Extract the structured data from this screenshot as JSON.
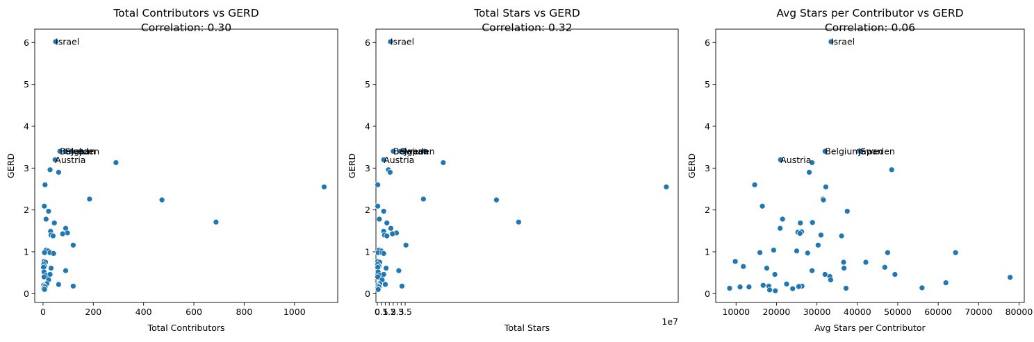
{
  "chart_data": [
    {
      "type": "scatter",
      "title": "Total Contributors vs GERD",
      "subtitle": "Correlation: 0.30",
      "xlabel": "Total Contributors",
      "ylabel": "GERD",
      "xlim": [
        -33,
        1172
      ],
      "ylim": [
        -0.21,
        6.32
      ],
      "xticks": [
        0,
        200,
        400,
        600,
        800,
        1000
      ],
      "yticks": [
        0,
        1,
        2,
        3,
        4,
        5,
        6
      ],
      "offset_text": "",
      "color": "#1f77b4",
      "points": [
        [
          50,
          6.02
        ],
        [
          67,
          3.4
        ],
        [
          88,
          3.4
        ],
        [
          112,
          3.4
        ],
        [
          150,
          3.4
        ],
        [
          48,
          3.2
        ],
        [
          290,
          3.13
        ],
        [
          28,
          2.96
        ],
        [
          62,
          2.9
        ],
        [
          8,
          2.6
        ],
        [
          1118,
          2.55
        ],
        [
          185,
          2.26
        ],
        [
          473,
          2.24
        ],
        [
          5,
          2.09
        ],
        [
          22,
          1.97
        ],
        [
          12,
          1.78
        ],
        [
          45,
          1.69
        ],
        [
          688,
          1.71
        ],
        [
          90,
          1.56
        ],
        [
          30,
          1.49
        ],
        [
          97,
          1.45
        ],
        [
          78,
          1.43
        ],
        [
          32,
          1.4
        ],
        [
          40,
          1.38
        ],
        [
          120,
          1.16
        ],
        [
          12,
          1.04
        ],
        [
          20,
          1.02
        ],
        [
          6,
          0.98
        ],
        [
          28,
          0.98
        ],
        [
          42,
          0.96
        ],
        [
          4,
          0.77
        ],
        [
          10,
          0.75
        ],
        [
          3,
          0.7
        ],
        [
          6,
          0.65
        ],
        [
          2,
          0.63
        ],
        [
          32,
          0.61
        ],
        [
          4,
          0.52
        ],
        [
          90,
          0.55
        ],
        [
          12,
          0.44
        ],
        [
          28,
          0.46
        ],
        [
          4,
          0.4
        ],
        [
          22,
          0.33
        ],
        [
          15,
          0.24
        ],
        [
          62,
          0.22
        ],
        [
          2,
          0.2
        ],
        [
          5,
          0.18
        ],
        [
          8,
          0.16
        ],
        [
          120,
          0.18
        ],
        [
          3,
          0.12
        ],
        [
          6,
          0.1
        ]
      ],
      "annotations": [
        {
          "text": "Israel",
          "x": 50,
          "y": 6.02
        },
        {
          "text": "Belgium",
          "x": 67,
          "y": 3.4
        },
        {
          "text": "Sweden",
          "x": 88,
          "y": 3.4
        },
        {
          "text": "Japan",
          "x": 112,
          "y": 3.4
        },
        {
          "text": "Austria",
          "x": 48,
          "y": 3.2
        }
      ]
    },
    {
      "type": "scatter",
      "title": "Total Stars vs GERD",
      "subtitle": "Correlation: 0.32",
      "xlabel": "Total Stars",
      "ylabel": "GERD",
      "xlim": [
        -0.18,
        37.9
      ],
      "ylim": [
        -0.21,
        6.32
      ],
      "xticks": [
        0.0,
        0.5,
        1.0,
        1.5,
        2.0,
        2.5,
        3.0,
        3.5
      ],
      "yticks": [
        0,
        1,
        2,
        3,
        4,
        5,
        6
      ],
      "offset_text": "1e7",
      "color": "#1f77b4",
      "points": [
        [
          1.65,
          6.02
        ],
        [
          2.0,
          3.4
        ],
        [
          2.9,
          3.4
        ],
        [
          3.4,
          3.4
        ],
        [
          6.0,
          3.4
        ],
        [
          0.8,
          3.2
        ],
        [
          8.3,
          3.13
        ],
        [
          1.4,
          2.96
        ],
        [
          1.6,
          2.9
        ],
        [
          0.05,
          2.6
        ],
        [
          36.4,
          2.55
        ],
        [
          5.8,
          2.26
        ],
        [
          15.0,
          2.24
        ],
        [
          0.05,
          2.09
        ],
        [
          0.8,
          1.97
        ],
        [
          0.25,
          1.78
        ],
        [
          1.2,
          1.69
        ],
        [
          17.8,
          1.71
        ],
        [
          1.7,
          1.56
        ],
        [
          0.8,
          1.49
        ],
        [
          2.4,
          1.45
        ],
        [
          1.9,
          1.43
        ],
        [
          0.9,
          1.4
        ],
        [
          1.2,
          1.38
        ],
        [
          3.6,
          1.16
        ],
        [
          0.2,
          1.04
        ],
        [
          0.5,
          1.02
        ],
        [
          0.1,
          0.98
        ],
        [
          0.6,
          0.98
        ],
        [
          0.8,
          0.96
        ],
        [
          0.05,
          0.77
        ],
        [
          0.3,
          0.75
        ],
        [
          0.05,
          0.7
        ],
        [
          0.2,
          0.65
        ],
        [
          0.05,
          0.63
        ],
        [
          1.1,
          0.61
        ],
        [
          0.1,
          0.52
        ],
        [
          2.7,
          0.55
        ],
        [
          0.3,
          0.44
        ],
        [
          0.8,
          0.46
        ],
        [
          0.05,
          0.4
        ],
        [
          0.6,
          0.33
        ],
        [
          0.3,
          0.24
        ],
        [
          1.0,
          0.22
        ],
        [
          0.05,
          0.2
        ],
        [
          0.1,
          0.18
        ],
        [
          0.2,
          0.16
        ],
        [
          3.1,
          0.18
        ],
        [
          0.05,
          0.12
        ],
        [
          0.1,
          0.1
        ]
      ],
      "annotations": [
        {
          "text": "Israel",
          "x": 1.65,
          "y": 6.02
        },
        {
          "text": "Belgium",
          "x": 2.0,
          "y": 3.4
        },
        {
          "text": "Sweden",
          "x": 2.9,
          "y": 3.4
        },
        {
          "text": "Japan",
          "x": 3.4,
          "y": 3.4
        },
        {
          "text": "Austria",
          "x": 0.8,
          "y": 3.2
        }
      ]
    },
    {
      "type": "scatter",
      "title": "Avg Stars per Contributor vs GERD",
      "subtitle": "Correlation: 0.06",
      "xlabel": "Avg Stars per Contributor",
      "ylabel": "GERD",
      "xlim": [
        4970,
        81295
      ],
      "ylim": [
        -0.21,
        6.32
      ],
      "xticks": [
        10000,
        20000,
        30000,
        40000,
        50000,
        60000,
        70000,
        80000
      ],
      "yticks": [
        0,
        1,
        2,
        3,
        4,
        5,
        6
      ],
      "offset_text": "",
      "color": "#1f77b4",
      "points": [
        [
          33500,
          6.02
        ],
        [
          32000,
          3.4
        ],
        [
          40300,
          3.4
        ],
        [
          40800,
          3.4
        ],
        [
          21000,
          3.2
        ],
        [
          28800,
          3.13
        ],
        [
          48500,
          2.96
        ],
        [
          28100,
          2.9
        ],
        [
          14600,
          2.6
        ],
        [
          32200,
          2.55
        ],
        [
          31500,
          2.26
        ],
        [
          31600,
          2.24
        ],
        [
          16500,
          2.09
        ],
        [
          37500,
          1.97
        ],
        [
          21500,
          1.78
        ],
        [
          25900,
          1.69
        ],
        [
          28900,
          1.7
        ],
        [
          20900,
          1.56
        ],
        [
          25300,
          1.47
        ],
        [
          26200,
          1.48
        ],
        [
          25800,
          1.44
        ],
        [
          31000,
          1.4
        ],
        [
          36100,
          1.38
        ],
        [
          30300,
          1.16
        ],
        [
          19300,
          1.04
        ],
        [
          25000,
          1.02
        ],
        [
          15900,
          0.98
        ],
        [
          27700,
          0.97
        ],
        [
          47500,
          0.98
        ],
        [
          64300,
          0.98
        ],
        [
          9800,
          0.77
        ],
        [
          36600,
          0.75
        ],
        [
          42100,
          0.75
        ],
        [
          11800,
          0.65
        ],
        [
          46800,
          0.63
        ],
        [
          17600,
          0.61
        ],
        [
          36700,
          0.61
        ],
        [
          28800,
          0.55
        ],
        [
          19600,
          0.46
        ],
        [
          32000,
          0.46
        ],
        [
          49300,
          0.46
        ],
        [
          33200,
          0.41
        ],
        [
          33400,
          0.33
        ],
        [
          77800,
          0.39
        ],
        [
          61900,
          0.26
        ],
        [
          22500,
          0.23
        ],
        [
          16700,
          0.2
        ],
        [
          26300,
          0.18
        ],
        [
          18100,
          0.18
        ],
        [
          25500,
          0.17
        ],
        [
          11000,
          0.16
        ],
        [
          13200,
          0.16
        ],
        [
          56000,
          0.14
        ],
        [
          8400,
          0.13
        ],
        [
          37200,
          0.13
        ],
        [
          24000,
          0.12
        ],
        [
          18300,
          0.09
        ],
        [
          19700,
          0.07
        ]
      ],
      "annotations": [
        {
          "text": "Israel",
          "x": 33500,
          "y": 6.02
        },
        {
          "text": "Belgium",
          "x": 32000,
          "y": 3.4
        },
        {
          "text": "Japan",
          "x": 40300,
          "y": 3.4
        },
        {
          "text": "Sweden",
          "x": 40800,
          "y": 3.4
        },
        {
          "text": "Austria",
          "x": 21000,
          "y": 3.2
        }
      ]
    }
  ]
}
